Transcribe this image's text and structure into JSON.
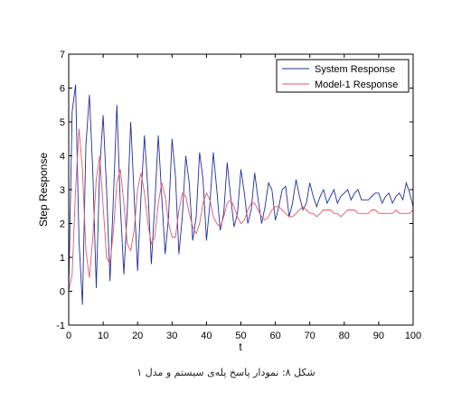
{
  "caption": "شکل ۸: نمودار پاسخ پله‌ی سیستم و مدل ۱",
  "chart_data": {
    "type": "line",
    "xlabel": "t",
    "ylabel": "Step Response",
    "xlim": [
      0,
      100
    ],
    "ylim": [
      -1,
      7
    ],
    "xticks": [
      "0",
      "10",
      "20",
      "30",
      "40",
      "50",
      "60",
      "70",
      "80",
      "90",
      "100"
    ],
    "yticks": [
      "-1",
      "0",
      "1",
      "2",
      "3",
      "4",
      "5",
      "6",
      "7"
    ],
    "grid": false,
    "legend": "top-right",
    "series": [
      {
        "name": "System Response",
        "color": "#1f2f9a",
        "x": [
          0,
          1,
          2,
          3,
          4,
          5,
          6,
          7,
          8,
          9,
          10,
          11,
          12,
          13,
          14,
          15,
          16,
          17,
          18,
          19,
          20,
          21,
          22,
          23,
          24,
          25,
          26,
          27,
          28,
          29,
          30,
          31,
          32,
          33,
          34,
          35,
          36,
          37,
          38,
          39,
          40,
          41,
          42,
          43,
          44,
          45,
          46,
          47,
          48,
          49,
          50,
          51,
          52,
          53,
          54,
          55,
          56,
          57,
          58,
          59,
          60,
          61,
          62,
          63,
          64,
          65,
          66,
          67,
          68,
          69,
          70,
          71,
          72,
          73,
          74,
          75,
          76,
          77,
          78,
          79,
          80,
          81,
          82,
          83,
          84,
          85,
          86,
          87,
          88,
          89,
          90,
          91,
          92,
          93,
          94,
          95,
          96,
          97,
          98,
          99,
          100
        ],
        "y": [
          0,
          5.3,
          6.1,
          1.5,
          -0.4,
          4.3,
          5.8,
          3.5,
          0.1,
          3.6,
          5.2,
          3.0,
          0.3,
          2.8,
          5.5,
          2.5,
          0.5,
          2.4,
          5.0,
          2.8,
          0.6,
          2.8,
          4.6,
          3.0,
          0.8,
          2.6,
          4.6,
          2.8,
          1.1,
          2.2,
          4.5,
          3.4,
          1.1,
          2.2,
          4.0,
          3.2,
          1.5,
          2.2,
          4.1,
          3.3,
          1.5,
          2.6,
          4.1,
          3.0,
          1.8,
          2.3,
          3.8,
          2.8,
          1.9,
          2.3,
          3.6,
          2.9,
          2.0,
          2.4,
          3.5,
          2.7,
          2.0,
          2.5,
          3.2,
          3.0,
          2.1,
          2.5,
          3.0,
          3.1,
          2.2,
          2.6,
          3.3,
          2.8,
          2.4,
          2.6,
          3.2,
          2.8,
          2.5,
          2.8,
          3.0,
          2.6,
          2.8,
          3.0,
          2.6,
          2.8,
          2.9,
          3.0,
          2.7,
          2.9,
          3.0,
          2.7,
          2.7,
          2.7,
          2.8,
          2.9,
          2.9,
          2.6,
          2.8,
          2.9,
          2.6,
          2.8,
          2.9,
          2.7,
          3.2,
          2.9,
          2.5
        ]
      },
      {
        "name": "Model-1 Response",
        "color": "#e05a6a",
        "x": [
          0,
          1,
          2,
          3,
          4,
          5,
          6,
          7,
          8,
          9,
          10,
          11,
          12,
          13,
          14,
          15,
          16,
          17,
          18,
          19,
          20,
          21,
          22,
          23,
          24,
          25,
          26,
          27,
          28,
          29,
          30,
          31,
          32,
          33,
          34,
          35,
          36,
          37,
          38,
          39,
          40,
          41,
          42,
          43,
          44,
          45,
          46,
          47,
          48,
          49,
          50,
          51,
          52,
          53,
          54,
          55,
          56,
          57,
          58,
          59,
          60,
          61,
          62,
          63,
          64,
          65,
          66,
          67,
          68,
          69,
          70,
          71,
          72,
          73,
          74,
          75,
          76,
          77,
          78,
          79,
          80,
          81,
          82,
          83,
          84,
          85,
          86,
          87,
          88,
          89,
          90,
          91,
          92,
          93,
          94,
          95,
          96,
          97,
          98,
          99,
          100
        ],
        "y": [
          0,
          0.5,
          3.0,
          4.8,
          3.6,
          1.2,
          0.4,
          1.6,
          3.3,
          4.0,
          2.5,
          1.0,
          0.8,
          1.8,
          3.2,
          3.6,
          2.6,
          1.4,
          1.2,
          1.8,
          3.0,
          3.5,
          2.9,
          2.0,
          1.4,
          1.6,
          2.6,
          3.2,
          2.8,
          2.0,
          1.6,
          1.6,
          2.4,
          2.9,
          2.8,
          2.3,
          1.9,
          1.7,
          2.0,
          2.6,
          2.9,
          2.7,
          2.2,
          2.0,
          1.9,
          2.2,
          2.6,
          2.7,
          2.5,
          2.2,
          2.0,
          2.1,
          2.4,
          2.6,
          2.6,
          2.4,
          2.2,
          2.1,
          2.2,
          2.4,
          2.5,
          2.5,
          2.4,
          2.3,
          2.2,
          2.2,
          2.3,
          2.4,
          2.5,
          2.4,
          2.3,
          2.3,
          2.2,
          2.3,
          2.4,
          2.4,
          2.4,
          2.3,
          2.3,
          2.2,
          2.3,
          2.4,
          2.4,
          2.4,
          2.3,
          2.3,
          2.3,
          2.3,
          2.4,
          2.4,
          2.3,
          2.3,
          2.3,
          2.3,
          2.3,
          2.4,
          2.3,
          2.3,
          2.3,
          2.3,
          2.4
        ]
      }
    ]
  }
}
